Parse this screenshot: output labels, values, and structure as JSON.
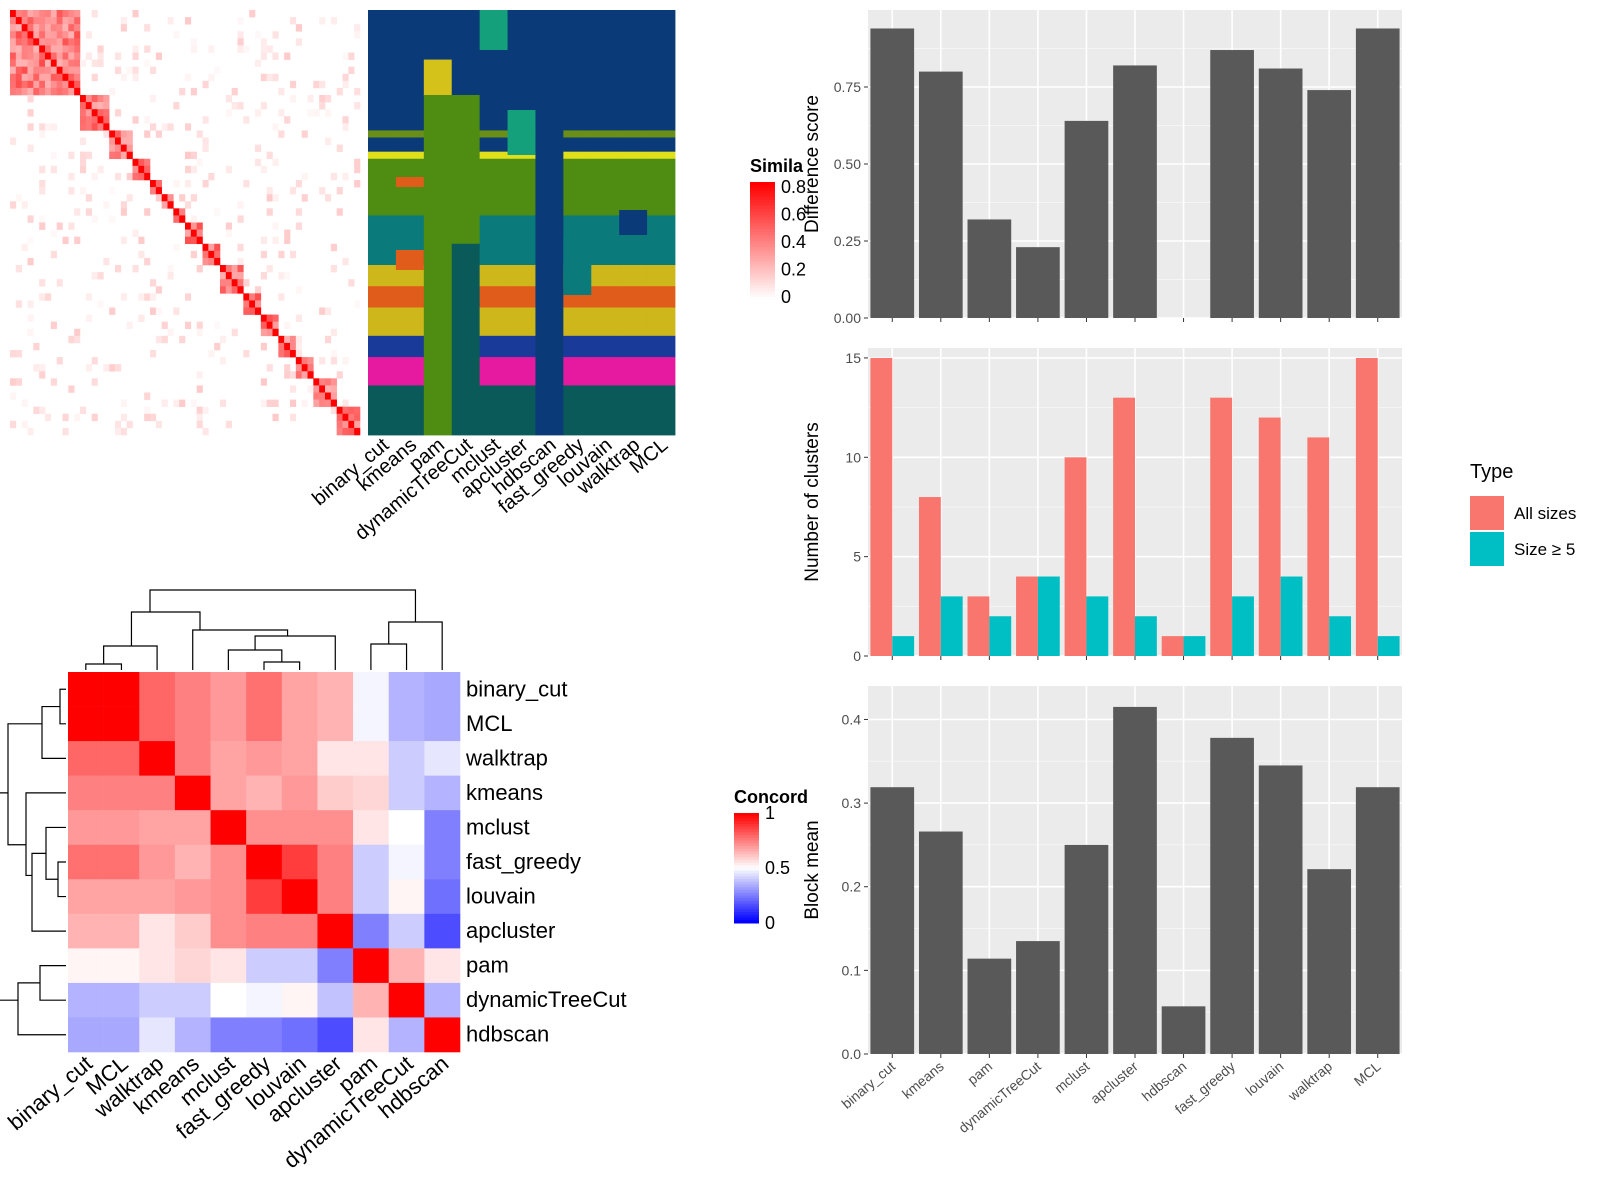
{
  "methods": [
    "binary_cut",
    "kmeans",
    "pam",
    "dynamicTreeCut",
    "mclust",
    "apcluster",
    "hdbscan",
    "fast_greedy",
    "louvain",
    "walktrap",
    "MCL"
  ],
  "colors": {
    "bar_dark": "#595959",
    "panel_bg": "#ebebeb",
    "grid": "#ffffff",
    "all_sizes": "#f8766d",
    "size_ge5": "#00bfc4",
    "heat_high": "#ff0000",
    "heat_mid": "#ffffff",
    "heat_low": "#0000ff"
  },
  "similarity_legend": {
    "title": "Simila",
    "ticks": [
      "0.8",
      "0.6",
      "0.4",
      "0.2",
      "0"
    ]
  },
  "concordance_legend": {
    "title": "Concord",
    "ticks": [
      "1",
      "0.5",
      "0"
    ]
  },
  "cluster_panel": {
    "palette": [
      "#0b3a78",
      "#14a07a",
      "#d4c21a",
      "#6a8f16",
      "#4f8c12",
      "#e0e01a",
      "#0a7a7a",
      "#e05c1a",
      "#cdb71a",
      "#1a3a9a",
      "#e61aa0",
      "#0a6a1a",
      "#0a5a5a"
    ]
  },
  "concordance": {
    "row_order": [
      "binary_cut",
      "MCL",
      "walktrap",
      "kmeans",
      "mclust",
      "fast_greedy",
      "louvain",
      "apcluster",
      "pam",
      "dynamicTreeCut",
      "hdbscan"
    ],
    "col_order": [
      "binary_cut",
      "MCL",
      "walktrap",
      "kmeans",
      "mclust",
      "fast_greedy",
      "louvain",
      "apcluster",
      "pam",
      "dynamicTreeCut",
      "hdbscan"
    ]
  },
  "chart_data": [
    {
      "type": "bar",
      "ylabel": "Difference score",
      "categories": [
        "binary_cut",
        "kmeans",
        "pam",
        "dynamicTreeCut",
        "mclust",
        "apcluster",
        "hdbscan",
        "fast_greedy",
        "louvain",
        "walktrap",
        "MCL"
      ],
      "values": [
        0.94,
        0.8,
        0.32,
        0.23,
        0.64,
        0.82,
        0.0,
        0.87,
        0.81,
        0.74,
        0.94
      ],
      "ylim": [
        0,
        1.0
      ],
      "yticks": [
        "0.00",
        "0.25",
        "0.50",
        "0.75"
      ],
      "ytick_values": [
        0,
        0.25,
        0.5,
        0.75
      ]
    },
    {
      "type": "bar",
      "ylabel": "Number of clusters",
      "categories": [
        "binary_cut",
        "kmeans",
        "pam",
        "dynamicTreeCut",
        "mclust",
        "apcluster",
        "hdbscan",
        "fast_greedy",
        "louvain",
        "walktrap",
        "MCL"
      ],
      "series": [
        {
          "name": "All sizes",
          "values": [
            15,
            8,
            3,
            4,
            10,
            13,
            1,
            13,
            12,
            11,
            15
          ]
        },
        {
          "name": "Size ≥ 5",
          "values": [
            1,
            3,
            2,
            4,
            3,
            2,
            1,
            3,
            4,
            2,
            1
          ]
        }
      ],
      "ylim": [
        0,
        15.5
      ],
      "yticks": [
        "0",
        "5",
        "10",
        "15"
      ],
      "ytick_values": [
        0,
        5,
        10,
        15
      ],
      "legend_title": "Type"
    },
    {
      "type": "bar",
      "ylabel": "Block mean",
      "categories": [
        "binary_cut",
        "kmeans",
        "pam",
        "dynamicTreeCut",
        "mclust",
        "apcluster",
        "hdbscan",
        "fast_greedy",
        "louvain",
        "walktrap",
        "MCL"
      ],
      "values": [
        0.319,
        0.266,
        0.114,
        0.135,
        0.25,
        0.415,
        0.057,
        0.378,
        0.345,
        0.221,
        0.319
      ],
      "ylim": [
        0,
        0.44
      ],
      "yticks": [
        "0.0",
        "0.1",
        "0.2",
        "0.3",
        "0.4"
      ],
      "ytick_values": [
        0,
        0.1,
        0.2,
        0.3,
        0.4
      ]
    },
    {
      "type": "heatmap",
      "title": "Concord",
      "rows": [
        "binary_cut",
        "MCL",
        "walktrap",
        "kmeans",
        "mclust",
        "fast_greedy",
        "louvain",
        "apcluster",
        "pam",
        "dynamicTreeCut",
        "hdbscan"
      ],
      "cols": [
        "binary_cut",
        "MCL",
        "walktrap",
        "kmeans",
        "mclust",
        "fast_greedy",
        "louvain",
        "apcluster",
        "pam",
        "dynamicTreeCut",
        "hdbscan"
      ],
      "values": [
        [
          1.0,
          1.0,
          0.8,
          0.75,
          0.7,
          0.78,
          0.68,
          0.65,
          0.48,
          0.35,
          0.33
        ],
        [
          1.0,
          1.0,
          0.8,
          0.75,
          0.7,
          0.78,
          0.68,
          0.65,
          0.48,
          0.35,
          0.33
        ],
        [
          0.8,
          0.8,
          1.0,
          0.75,
          0.68,
          0.7,
          0.68,
          0.55,
          0.55,
          0.4,
          0.45
        ],
        [
          0.75,
          0.75,
          0.75,
          1.0,
          0.68,
          0.65,
          0.7,
          0.6,
          0.58,
          0.4,
          0.35
        ],
        [
          0.7,
          0.7,
          0.68,
          0.68,
          1.0,
          0.72,
          0.72,
          0.72,
          0.55,
          0.5,
          0.25
        ],
        [
          0.78,
          0.78,
          0.7,
          0.65,
          0.72,
          1.0,
          0.88,
          0.75,
          0.4,
          0.48,
          0.25
        ],
        [
          0.68,
          0.68,
          0.68,
          0.7,
          0.72,
          0.88,
          1.0,
          0.75,
          0.4,
          0.52,
          0.22
        ],
        [
          0.65,
          0.65,
          0.55,
          0.6,
          0.72,
          0.75,
          0.75,
          1.0,
          0.25,
          0.4,
          0.15
        ],
        [
          0.52,
          0.52,
          0.55,
          0.58,
          0.55,
          0.4,
          0.4,
          0.25,
          1.0,
          0.65,
          0.55
        ],
        [
          0.35,
          0.35,
          0.4,
          0.4,
          0.5,
          0.48,
          0.52,
          0.38,
          0.65,
          1.0,
          0.35
        ],
        [
          0.33,
          0.33,
          0.45,
          0.35,
          0.25,
          0.25,
          0.22,
          0.15,
          0.55,
          0.35,
          1.0
        ]
      ],
      "ylim": [
        0,
        1
      ]
    }
  ]
}
